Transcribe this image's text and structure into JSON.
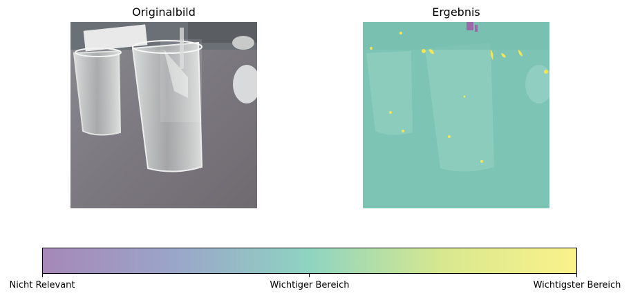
{
  "panels": {
    "left_title": "Originalbild",
    "right_title": "Ergebnis"
  },
  "colorbar": {
    "colors": [
      "#a688b8",
      "#9aa6c9",
      "#8fd4c1",
      "#d8e88f",
      "#fbf28b"
    ],
    "ticks": [
      {
        "label": "Nicht Relevant"
      },
      {
        "label": "Wichtiger Bereich"
      },
      {
        "label": "Wichtigster Bereich"
      }
    ]
  },
  "overlay": {
    "base_color": "#7dc4b4",
    "highlight_color": "#f2e557",
    "low_color": "#9a6aa8"
  }
}
